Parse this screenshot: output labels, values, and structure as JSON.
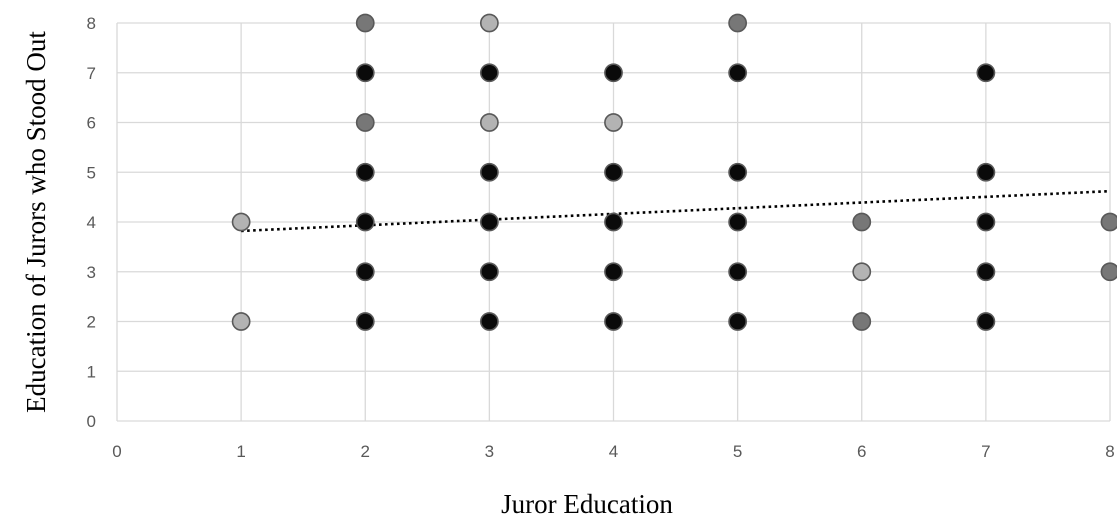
{
  "chart_data": {
    "type": "scatter",
    "title": "",
    "xlabel": "Juror Education",
    "ylabel": "Education of Jurors who Stood Out",
    "xlim": [
      0,
      8
    ],
    "ylim": [
      0,
      8
    ],
    "x_ticks": [
      0,
      1,
      2,
      3,
      4,
      5,
      6,
      7,
      8
    ],
    "y_ticks": [
      0,
      1,
      2,
      3,
      4,
      5,
      6,
      7,
      8
    ],
    "grid": true,
    "legend": "none",
    "colors": {
      "light": "#b3b3b3",
      "medium": "#777777",
      "dark": "#0a0a0a",
      "point_edge": "#595959",
      "trend": "#000000"
    },
    "points": [
      {
        "x": 1,
        "y": 4,
        "shade": "light"
      },
      {
        "x": 1,
        "y": 2,
        "shade": "light"
      },
      {
        "x": 2,
        "y": 8,
        "shade": "medium"
      },
      {
        "x": 2,
        "y": 7,
        "shade": "dark"
      },
      {
        "x": 2,
        "y": 6,
        "shade": "medium"
      },
      {
        "x": 2,
        "y": 5,
        "shade": "dark"
      },
      {
        "x": 2,
        "y": 4,
        "shade": "dark"
      },
      {
        "x": 2,
        "y": 3,
        "shade": "dark"
      },
      {
        "x": 2,
        "y": 2,
        "shade": "dark"
      },
      {
        "x": 3,
        "y": 8,
        "shade": "light"
      },
      {
        "x": 3,
        "y": 7,
        "shade": "dark"
      },
      {
        "x": 3,
        "y": 6,
        "shade": "light"
      },
      {
        "x": 3,
        "y": 5,
        "shade": "dark"
      },
      {
        "x": 3,
        "y": 4,
        "shade": "dark"
      },
      {
        "x": 3,
        "y": 3,
        "shade": "dark"
      },
      {
        "x": 3,
        "y": 2,
        "shade": "dark"
      },
      {
        "x": 4,
        "y": 7,
        "shade": "dark"
      },
      {
        "x": 4,
        "y": 6,
        "shade": "light"
      },
      {
        "x": 4,
        "y": 5,
        "shade": "dark"
      },
      {
        "x": 4,
        "y": 4,
        "shade": "dark"
      },
      {
        "x": 4,
        "y": 3,
        "shade": "dark"
      },
      {
        "x": 4,
        "y": 2,
        "shade": "dark"
      },
      {
        "x": 5,
        "y": 8,
        "shade": "medium"
      },
      {
        "x": 5,
        "y": 7,
        "shade": "dark"
      },
      {
        "x": 5,
        "y": 5,
        "shade": "dark"
      },
      {
        "x": 5,
        "y": 4,
        "shade": "dark"
      },
      {
        "x": 5,
        "y": 3,
        "shade": "dark"
      },
      {
        "x": 5,
        "y": 2,
        "shade": "dark"
      },
      {
        "x": 6,
        "y": 4,
        "shade": "medium"
      },
      {
        "x": 6,
        "y": 3,
        "shade": "light"
      },
      {
        "x": 6,
        "y": 2,
        "shade": "medium"
      },
      {
        "x": 7,
        "y": 7,
        "shade": "dark"
      },
      {
        "x": 7,
        "y": 5,
        "shade": "dark"
      },
      {
        "x": 7,
        "y": 4,
        "shade": "dark"
      },
      {
        "x": 7,
        "y": 3,
        "shade": "dark"
      },
      {
        "x": 7,
        "y": 2,
        "shade": "dark"
      },
      {
        "x": 8,
        "y": 4,
        "shade": "medium"
      },
      {
        "x": 8,
        "y": 3,
        "shade": "medium"
      }
    ],
    "trendline": {
      "style": "dotted",
      "x": [
        1,
        8
      ],
      "y": [
        3.82,
        4.62
      ]
    }
  }
}
